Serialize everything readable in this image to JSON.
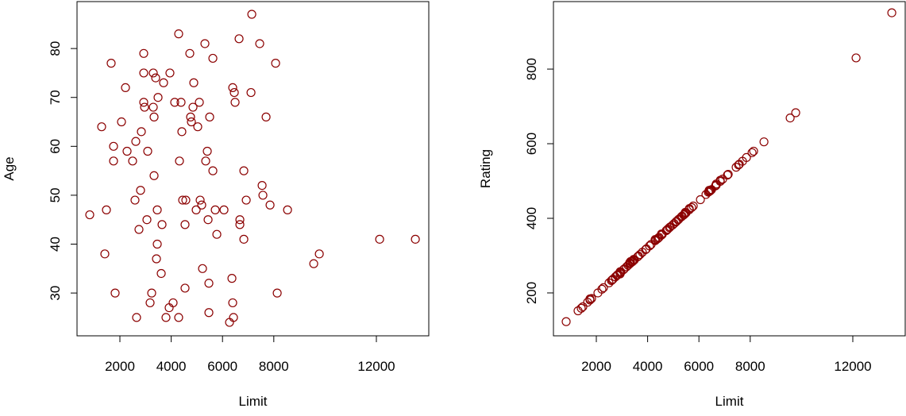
{
  "chart_data": [
    {
      "type": "scatter",
      "xlabel": "Limit",
      "ylabel": "Age",
      "color": "#8b0000",
      "xlim": [
        328,
        14043
      ],
      "xticks": [
        2000,
        4000,
        6000,
        8000,
        12000
      ],
      "ylim": [
        21.25,
        89.6
      ],
      "yticks": [
        30,
        40,
        50,
        60,
        70,
        80
      ],
      "x": [
        824,
        1288,
        1412,
        1474,
        1659,
        1752,
        1752,
        1814,
        2062,
        2217,
        2279,
        2495,
        2588,
        2619,
        2650,
        2743,
        2805,
        2836,
        2929,
        2929,
        2929,
        2960,
        3053,
        3084,
        3177,
        3239,
        3301,
        3301,
        3332,
        3332,
        3394,
        3425,
        3456,
        3456,
        3487,
        3611,
        3642,
        3703,
        3796,
        3920,
        3950,
        4074,
        4136,
        4291,
        4291,
        4322,
        4384,
        4415,
        4446,
        4539,
        4539,
        4570,
        4725,
        4756,
        4787,
        4849,
        4880,
        4973,
        5035,
        5097,
        5128,
        5190,
        5221,
        5314,
        5345,
        5407,
        5438,
        5469,
        5469,
        5500,
        5624,
        5624,
        5717,
        5779,
        6058,
        6274,
        6367,
        6398,
        6398,
        6429,
        6460,
        6491,
        6646,
        6677,
        6677,
        6832,
        6832,
        6925,
        7111,
        7142,
        7451,
        7544,
        7575,
        7699,
        7854,
        8071,
        8133,
        8536,
        9557,
        9774,
        12127,
        13520
      ],
      "values": [
        46,
        64,
        38,
        47,
        77,
        60,
        57,
        30,
        65,
        72,
        59,
        57,
        49,
        61,
        25,
        43,
        51,
        63,
        79,
        69,
        75,
        68,
        45,
        59,
        28,
        30,
        75,
        68,
        54,
        66,
        74,
        37,
        40,
        47,
        70,
        34,
        44,
        73,
        25,
        27,
        75,
        28,
        69,
        83,
        25,
        57,
        69,
        63,
        49,
        44,
        31,
        49,
        79,
        66,
        65,
        68,
        73,
        47,
        64,
        69,
        49,
        48,
        35,
        81,
        57,
        59,
        45,
        32,
        26,
        66,
        55,
        78,
        47,
        42,
        47,
        24,
        33,
        72,
        28,
        25,
        71,
        69,
        82,
        44,
        45,
        41,
        55,
        49,
        71,
        87,
        81,
        52,
        50,
        66,
        48,
        77,
        30,
        47,
        36,
        38,
        41,
        41
      ]
    },
    {
      "type": "scatter",
      "xlabel": "Limit",
      "ylabel": "Rating",
      "color": "#8b0000",
      "xlim": [
        328,
        14043
      ],
      "xticks": [
        2000,
        4000,
        6000,
        8000,
        12000
      ],
      "ylim": [
        85,
        981
      ],
      "yticks": [
        200,
        400,
        600,
        800
      ],
      "x": [
        824,
        1288,
        1412,
        1474,
        1659,
        1752,
        1752,
        1814,
        2062,
        2217,
        2279,
        2495,
        2588,
        2619,
        2650,
        2743,
        2805,
        2836,
        2929,
        2929,
        2929,
        2960,
        3053,
        3084,
        3177,
        3239,
        3301,
        3301,
        3332,
        3332,
        3394,
        3425,
        3456,
        3456,
        3487,
        3611,
        3642,
        3703,
        3796,
        3920,
        3950,
        4074,
        4136,
        4291,
        4291,
        4322,
        4384,
        4415,
        4446,
        4539,
        4539,
        4570,
        4725,
        4756,
        4787,
        4849,
        4880,
        4973,
        5035,
        5097,
        5128,
        5190,
        5221,
        5314,
        5345,
        5407,
        5438,
        5469,
        5469,
        5500,
        5624,
        5624,
        5717,
        5779,
        6058,
        6274,
        6367,
        6398,
        6398,
        6429,
        6460,
        6491,
        6646,
        6677,
        6677,
        6832,
        6832,
        6925,
        7111,
        7142,
        7451,
        7544,
        7575,
        7699,
        7854,
        8071,
        8133,
        8536,
        9557,
        9774,
        12127,
        13520
      ],
      "values": [
        123,
        152,
        159,
        163,
        175,
        181,
        184,
        185,
        200,
        210,
        214,
        227,
        233,
        235,
        237,
        243,
        247,
        249,
        254,
        257,
        251,
        256,
        262,
        264,
        270,
        274,
        278,
        281,
        280,
        284,
        283,
        285,
        287,
        290,
        289,
        297,
        299,
        303,
        309,
        316,
        318,
        326,
        330,
        340,
        343,
        342,
        345,
        347,
        349,
        355,
        358,
        357,
        367,
        369,
        371,
        375,
        377,
        382,
        386,
        390,
        392,
        396,
        398,
        404,
        406,
        409,
        411,
        413,
        416,
        415,
        423,
        426,
        429,
        433,
        450,
        464,
        470,
        472,
        475,
        473,
        475,
        477,
        487,
        489,
        492,
        499,
        502,
        505,
        516,
        518,
        537,
        543,
        545,
        553,
        563,
        576,
        580,
        605,
        669,
        683,
        830,
        951
      ]
    }
  ]
}
